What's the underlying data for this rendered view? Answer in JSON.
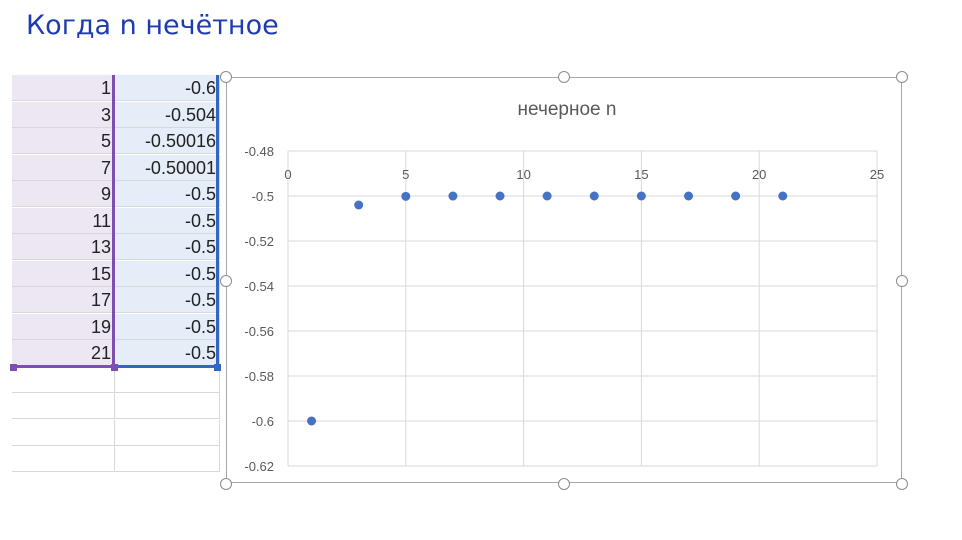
{
  "slide": {
    "title": "Когда n нечётное"
  },
  "sheet": {
    "rows": [
      {
        "a": "1",
        "b": "-0.6"
      },
      {
        "a": "3",
        "b": "-0.504"
      },
      {
        "a": "5",
        "b": "-0.50016"
      },
      {
        "a": "7",
        "b": "-0.50001"
      },
      {
        "a": "9",
        "b": "-0.5"
      },
      {
        "a": "11",
        "b": "-0.5"
      },
      {
        "a": "13",
        "b": "-0.5"
      },
      {
        "a": "15",
        "b": "-0.5"
      },
      {
        "a": "17",
        "b": "-0.5"
      },
      {
        "a": "19",
        "b": "-0.5"
      },
      {
        "a": "21",
        "b": "-0.5"
      }
    ],
    "empty_rows": 4,
    "colors": {
      "selection_a": "#7e4fb1",
      "selection_b": "#3266c0"
    }
  },
  "chart_data": {
    "type": "scatter",
    "title": "нечерное n",
    "xlabel": "",
    "ylabel": "",
    "xlim": [
      0,
      25
    ],
    "ylim": [
      -0.62,
      -0.48
    ],
    "x_ticks": [
      0,
      5,
      10,
      15,
      20,
      25
    ],
    "y_ticks": [
      -0.48,
      -0.5,
      -0.52,
      -0.54,
      -0.56,
      -0.58,
      -0.6,
      -0.62
    ],
    "x_axis_position": "top",
    "grid": true,
    "marker_color": "#4472c4",
    "series": [
      {
        "x": [
          1,
          3,
          5,
          7,
          9,
          11,
          13,
          15,
          17,
          19,
          21
        ],
        "y": [
          -0.6,
          -0.504,
          -0.50016,
          -0.50001,
          -0.5,
          -0.5,
          -0.5,
          -0.5,
          -0.5,
          -0.5,
          -0.5
        ]
      }
    ]
  }
}
